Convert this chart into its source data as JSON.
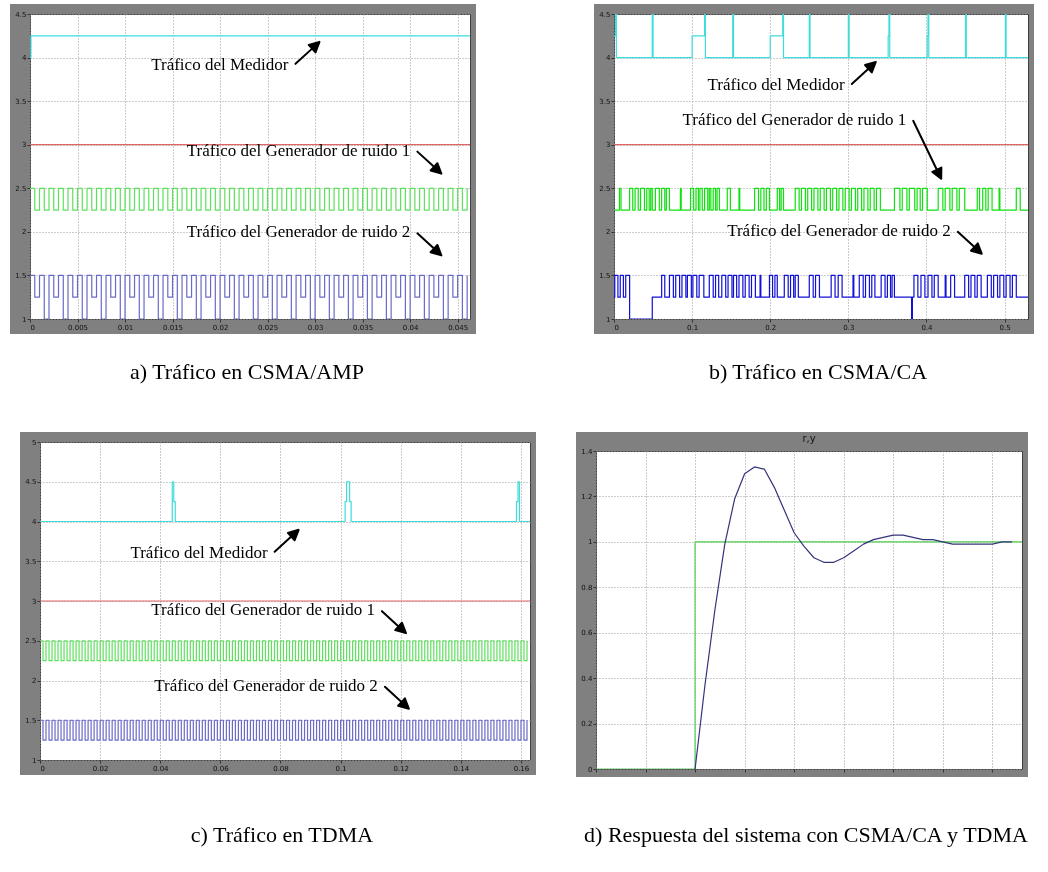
{
  "chart_data": [
    {
      "type": "step",
      "title": "a) Tráfico en CSMA/AMP",
      "xlim": [
        0,
        0.0463
      ],
      "xticks": [
        0,
        0.005,
        0.01,
        0.015,
        0.02,
        0.025,
        0.03,
        0.035,
        0.04,
        0.045
      ],
      "ylim": [
        1,
        4.5
      ],
      "yticks": [
        1,
        1.5,
        2,
        2.5,
        3,
        3.5,
        4,
        4.5
      ],
      "grid": true,
      "x": [
        0,
        0.0005,
        0.001,
        0.0015,
        0.002,
        0.0025,
        0.003,
        0.0035,
        0.004,
        0.0045,
        0.005,
        0.0055,
        0.006,
        0.0065,
        0.007,
        0.0075,
        0.008,
        0.0085,
        0.009,
        0.0095,
        0.01,
        0.0105,
        0.011,
        0.0115,
        0.012,
        0.0125,
        0.013,
        0.0135,
        0.014,
        0.0145,
        0.015,
        0.0155,
        0.016,
        0.0165,
        0.017,
        0.0175,
        0.018,
        0.0185,
        0.019,
        0.0195,
        0.02,
        0.0205,
        0.021,
        0.0215,
        0.022,
        0.0225,
        0.023,
        0.0235,
        0.024,
        0.0245,
        0.025,
        0.0255,
        0.026,
        0.0265,
        0.027,
        0.0275,
        0.028,
        0.0285,
        0.029,
        0.0295,
        0.03,
        0.0305,
        0.031,
        0.0315,
        0.032,
        0.0325,
        0.033,
        0.0335,
        0.034,
        0.0345,
        0.035,
        0.0355,
        0.036,
        0.0365,
        0.037,
        0.0375,
        0.038,
        0.0385,
        0.039,
        0.0395,
        0.04,
        0.0405,
        0.041,
        0.0415,
        0.042,
        0.0425,
        0.043,
        0.0435,
        0.044,
        0.0445,
        0.045,
        0.0455,
        0.046
      ],
      "series": [
        {
          "color": "#40dcdc",
          "x": [
            0,
            0.0001,
            0.0463
          ],
          "values": [
            4,
            4.25,
            4.25
          ]
        },
        {
          "color": "#e06666",
          "x": [
            0,
            0.0463
          ],
          "values": [
            3,
            3
          ]
        },
        {
          "color": "#5ee05e",
          "values": [
            2.5,
            2.25,
            2.5,
            2.25,
            2.5,
            2.25,
            2.5,
            2.25,
            2.5,
            2.25,
            2.5,
            2.25,
            2.5,
            2.25,
            2.5,
            2.25,
            2.5,
            2.25,
            2.5,
            2.25,
            2.5,
            2.25,
            2.5,
            2.25,
            2.5,
            2.25,
            2.5,
            2.25,
            2.5,
            2.25,
            2.5,
            2.25,
            2.5,
            2.25,
            2.5,
            2.25,
            2.5,
            2.25,
            2.5,
            2.25,
            2.5,
            2.25,
            2.5,
            2.25,
            2.5,
            2.25,
            2.5,
            2.25,
            2.5,
            2.25,
            2.5,
            2.25,
            2.5,
            2.25,
            2.5,
            2.25,
            2.5,
            2.25,
            2.5,
            2.25,
            2.5,
            2.25,
            2.5,
            2.25,
            2.5,
            2.25,
            2.5,
            2.25,
            2.5,
            2.25,
            2.5,
            2.25,
            2.5,
            2.25,
            2.5,
            2.25,
            2.5,
            2.25,
            2.5,
            2.25,
            2.5,
            2.25,
            2.5,
            2.25,
            2.5,
            2.25,
            2.5,
            2.25,
            2.5,
            2.25,
            2.5,
            2.25,
            2.5
          ]
        },
        {
          "color": "#6a6ac8",
          "values": [
            1.5,
            1.25,
            1.5,
            1,
            1.5,
            1.25,
            1.5,
            1,
            1.5,
            1.25,
            1.5,
            1,
            1.5,
            1.25,
            1.5,
            1,
            1.5,
            1.25,
            1.5,
            1,
            1.5,
            1.25,
            1.5,
            1,
            1.5,
            1.25,
            1.5,
            1,
            1.5,
            1.25,
            1.5,
            1,
            1.5,
            1.25,
            1.5,
            1,
            1.5,
            1.25,
            1.5,
            1,
            1.5,
            1.25,
            1.5,
            1,
            1.5,
            1.25,
            1.5,
            1,
            1.5,
            1.25,
            1.5,
            1,
            1.5,
            1.25,
            1.5,
            1,
            1.5,
            1.25,
            1.5,
            1,
            1.5,
            1.25,
            1.5,
            1,
            1.5,
            1.25,
            1.5,
            1,
            1.5,
            1.25,
            1.5,
            1,
            1.5,
            1.25,
            1.5,
            1,
            1.5,
            1.25,
            1.5,
            1,
            1.5,
            1.25,
            1.5,
            1,
            1.5,
            1.25,
            1.5,
            1,
            1.5,
            1.25,
            1.5,
            1,
            1.5
          ]
        }
      ],
      "annotations": [
        "Tráfico del Medidor",
        "Tráfico del Generador de ruido  1",
        "Tráfico del Generador de ruido  2"
      ]
    },
    {
      "type": "step",
      "title": "b) Tráfico en CSMA/CA",
      "xlim": [
        0,
        0.53
      ],
      "xticks": [
        0,
        0.1,
        0.2,
        0.3,
        0.4,
        0.5
      ],
      "ylim": [
        1,
        4.5
      ],
      "yticks": [
        1,
        1.5,
        2,
        2.5,
        3,
        3.5,
        4,
        4.5
      ],
      "grid": true,
      "series": [
        {
          "color": "#40dcdc",
          "x": [
            0,
            0.002,
            0.003,
            0.049,
            0.05,
            0.1,
            0.116,
            0.117,
            0.152,
            0.153,
            0.2,
            0.216,
            0.217,
            0.25,
            0.251,
            0.3,
            0.301,
            0.351,
            0.352,
            0.353,
            0.401,
            0.402,
            0.403,
            0.45,
            0.451,
            0.501,
            0.502,
            0.53
          ],
          "values": [
            4.25,
            4.5,
            4,
            4.5,
            4,
            4.25,
            4.5,
            4,
            4.5,
            4,
            4.25,
            4.5,
            4,
            4.5,
            4,
            4.5,
            4,
            4.25,
            4.5,
            4,
            4.25,
            4.5,
            4,
            4.5,
            4,
            4.5,
            4,
            4
          ]
        },
        {
          "color": "#e06666",
          "x": [
            0,
            0.53
          ],
          "values": [
            3,
            3
          ]
        },
        {
          "color": "#10e010",
          "x": [
            0,
            0.007,
            0.009,
            0.02,
            0.024,
            0.027,
            0.031,
            0.034,
            0.039,
            0.042,
            0.045,
            0.047,
            0.049,
            0.053,
            0.058,
            0.061,
            0.065,
            0.067,
            0.071,
            0.085,
            0.086,
            0.098,
            0.102,
            0.105,
            0.108,
            0.11,
            0.113,
            0.116,
            0.12,
            0.122,
            0.124,
            0.127,
            0.13,
            0.132,
            0.135,
            0.145,
            0.149,
            0.16,
            0.161,
            0.18,
            0.185,
            0.188,
            0.192,
            0.195,
            0.199,
            0.209,
            0.212,
            0.214,
            0.217,
            0.232,
            0.237,
            0.24,
            0.245,
            0.248,
            0.253,
            0.256,
            0.261,
            0.264,
            0.269,
            0.272,
            0.277,
            0.28,
            0.285,
            0.288,
            0.293,
            0.296,
            0.301,
            0.304,
            0.309,
            0.312,
            0.317,
            0.32,
            0.325,
            0.328,
            0.333,
            0.336,
            0.341,
            0.359,
            0.366,
            0.369,
            0.375,
            0.378,
            0.385,
            0.388,
            0.392,
            0.395,
            0.401,
            0.415,
            0.421,
            0.424,
            0.43,
            0.433,
            0.439,
            0.442,
            0.449,
            0.465,
            0.468,
            0.472,
            0.476,
            0.479,
            0.484,
            0.493,
            0.494,
            0.515,
            0.52,
            0.53
          ],
          "values": [
            2.25,
            2.5,
            2.25,
            2.5,
            2.25,
            2.5,
            2.25,
            2.5,
            2.25,
            2.5,
            2.25,
            2.5,
            2.25,
            2.5,
            2.25,
            2.5,
            2.25,
            2.5,
            2.25,
            2.5,
            2.25,
            2.5,
            2.25,
            2.5,
            2.25,
            2.5,
            2.25,
            2.5,
            2.25,
            2.5,
            2.25,
            2.5,
            2.25,
            2.5,
            2.25,
            2.5,
            2.25,
            2.5,
            2.25,
            2.5,
            2.25,
            2.5,
            2.25,
            2.5,
            2.25,
            2.5,
            2.25,
            2.5,
            2.25,
            2.5,
            2.25,
            2.5,
            2.25,
            2.5,
            2.25,
            2.5,
            2.25,
            2.5,
            2.25,
            2.5,
            2.25,
            2.5,
            2.25,
            2.5,
            2.25,
            2.5,
            2.25,
            2.5,
            2.25,
            2.5,
            2.25,
            2.5,
            2.25,
            2.5,
            2.25,
            2.5,
            2.25,
            2.5,
            2.25,
            2.5,
            2.25,
            2.5,
            2.25,
            2.5,
            2.25,
            2.5,
            2.25,
            2.5,
            2.25,
            2.5,
            2.25,
            2.5,
            2.25,
            2.5,
            2.25,
            2.5,
            2.25,
            2.5,
            2.25,
            2.5,
            2.25,
            2.5,
            2.25,
            2.5,
            2.25,
            2.25
          ]
        },
        {
          "color": "#1010d8",
          "x": [
            0,
            0.001,
            0.005,
            0.008,
            0.012,
            0.015,
            0.02,
            0.049,
            0.061,
            0.065,
            0.071,
            0.076,
            0.079,
            0.084,
            0.087,
            0.092,
            0.094,
            0.099,
            0.101,
            0.106,
            0.109,
            0.115,
            0.122,
            0.127,
            0.13,
            0.134,
            0.138,
            0.143,
            0.146,
            0.151,
            0.153,
            0.157,
            0.16,
            0.165,
            0.168,
            0.173,
            0.176,
            0.181,
            0.187,
            0.188,
            0.199,
            0.203,
            0.206,
            0.209,
            0.218,
            0.223,
            0.226,
            0.23,
            0.232,
            0.236,
            0.25,
            0.255,
            0.258,
            0.263,
            0.278,
            0.283,
            0.287,
            0.292,
            0.306,
            0.307,
            0.314,
            0.319,
            0.322,
            0.327,
            0.33,
            0.334,
            0.342,
            0.347,
            0.35,
            0.354,
            0.356,
            0.359,
            0.381,
            0.382,
            0.384,
            0.389,
            0.393,
            0.398,
            0.402,
            0.407,
            0.41,
            0.415,
            0.424,
            0.425,
            0.431,
            0.436,
            0.449,
            0.454,
            0.457,
            0.462,
            0.465,
            0.47,
            0.478,
            0.483,
            0.486,
            0.491,
            0.494,
            0.499,
            0.502,
            0.507,
            0.51,
            0.515,
            0.53
          ],
          "values": [
            1.25,
            1.5,
            1.25,
            1.5,
            1.25,
            1.5,
            1,
            1.25,
            1.5,
            1.25,
            1.5,
            1.25,
            1.5,
            1.25,
            1.5,
            1.25,
            1.5,
            1.25,
            1.5,
            1.25,
            1.5,
            1.25,
            1.5,
            1.25,
            1.5,
            1.25,
            1.5,
            1.25,
            1.5,
            1.25,
            1.5,
            1.25,
            1.5,
            1.25,
            1.5,
            1.25,
            1.5,
            1.25,
            1.5,
            1.25,
            1.5,
            1.25,
            1.5,
            1.25,
            1.5,
            1.25,
            1.5,
            1.25,
            1.5,
            1.25,
            1.5,
            1.25,
            1.5,
            1.25,
            1.5,
            1.25,
            1.5,
            1.25,
            1.5,
            1.25,
            1.5,
            1.25,
            1.5,
            1.25,
            1.5,
            1.25,
            1.5,
            1.25,
            1.5,
            1.25,
            1.5,
            1.25,
            1,
            1.25,
            1.5,
            1.25,
            1.5,
            1.25,
            1.5,
            1.25,
            1.5,
            1.25,
            1.5,
            1.25,
            1.5,
            1.25,
            1.5,
            1.25,
            1.5,
            1.25,
            1.5,
            1.25,
            1.5,
            1.25,
            1.5,
            1.25,
            1.5,
            1.25,
            1.5,
            1.25,
            1.5,
            1.25,
            1.25
          ]
        }
      ],
      "annotations": [
        "Tráfico del Medidor",
        "Tráfico del Generador de ruido  1",
        "Tráfico del Generador de ruido  2"
      ]
    },
    {
      "type": "step",
      "title": "c) Tráfico en TDMA",
      "xlim": [
        0,
        0.163
      ],
      "xticks": [
        0,
        0.02,
        0.04,
        0.06,
        0.08,
        0.1,
        0.12,
        0.14,
        0.16
      ],
      "ylim": [
        1,
        5
      ],
      "yticks": [
        1,
        1.5,
        2,
        2.5,
        3,
        3.5,
        4,
        4.5,
        5
      ],
      "grid": true,
      "x": [
        0,
        0.001,
        0.002,
        0.003,
        0.004,
        0.005,
        0.006,
        0.007,
        0.008,
        0.009,
        0.01,
        0.011,
        0.012,
        0.013,
        0.014,
        0.015,
        0.016,
        0.017,
        0.018,
        0.019,
        0.02,
        0.021,
        0.022,
        0.023,
        0.024,
        0.025,
        0.026,
        0.027,
        0.028,
        0.029,
        0.03,
        0.031,
        0.032,
        0.033,
        0.034,
        0.035,
        0.036,
        0.037,
        0.038,
        0.039,
        0.04,
        0.041,
        0.042,
        0.043,
        0.044,
        0.045,
        0.046,
        0.047,
        0.048,
        0.049,
        0.05,
        0.051,
        0.052,
        0.053,
        0.054,
        0.055,
        0.056,
        0.057,
        0.058,
        0.059,
        0.06,
        0.061,
        0.062,
        0.063,
        0.064,
        0.065,
        0.066,
        0.067,
        0.068,
        0.069,
        0.07,
        0.071,
        0.072,
        0.073,
        0.074,
        0.075,
        0.076,
        0.077,
        0.078,
        0.079,
        0.08,
        0.081,
        0.082,
        0.083,
        0.084,
        0.085,
        0.086,
        0.087,
        0.088,
        0.089,
        0.09,
        0.091,
        0.092,
        0.093,
        0.094,
        0.095,
        0.096,
        0.097,
        0.098,
        0.099,
        0.1,
        0.101,
        0.102,
        0.103,
        0.104,
        0.105,
        0.106,
        0.107,
        0.108,
        0.109,
        0.11,
        0.111,
        0.112,
        0.113,
        0.114,
        0.115,
        0.116,
        0.117,
        0.118,
        0.119,
        0.12,
        0.121,
        0.122,
        0.123,
        0.124,
        0.125,
        0.126,
        0.127,
        0.128,
        0.129,
        0.13,
        0.131,
        0.132,
        0.133,
        0.134,
        0.135,
        0.136,
        0.137,
        0.138,
        0.139,
        0.14,
        0.141,
        0.142,
        0.143,
        0.144,
        0.145,
        0.146,
        0.147,
        0.148,
        0.149,
        0.15,
        0.151,
        0.152,
        0.153,
        0.154,
        0.155,
        0.156,
        0.157,
        0.158,
        0.159,
        0.16,
        0.161,
        0.162
      ],
      "series": [
        {
          "color": "#40dcdc",
          "x": [
            0,
            0.044,
            0.0445,
            0.045,
            0.1015,
            0.102,
            0.103,
            0.1035,
            0.1585,
            0.159,
            0.1595,
            0.163
          ],
          "values": [
            4,
            4.5,
            4.25,
            4,
            4.25,
            4.5,
            4.25,
            4,
            4.25,
            4.5,
            4,
            4
          ]
        },
        {
          "color": "#e06666",
          "x": [
            0,
            0.163
          ],
          "values": [
            3,
            3
          ]
        },
        {
          "color": "#5ee05e",
          "values": [
            2.5,
            2.25,
            2.5,
            2.25,
            2.5,
            2.25,
            2.5,
            2.25,
            2.5,
            2.25,
            2.5,
            2.25,
            2.5,
            2.25,
            2.5,
            2.25,
            2.5,
            2.25,
            2.5,
            2.25,
            2.5,
            2.25,
            2.5,
            2.25,
            2.5,
            2.25,
            2.5,
            2.25,
            2.5,
            2.25,
            2.5,
            2.25,
            2.5,
            2.25,
            2.5,
            2.25,
            2.5,
            2.25,
            2.5,
            2.25,
            2.5,
            2.25,
            2.5,
            2.25,
            2.5,
            2.25,
            2.5,
            2.25,
            2.5,
            2.25,
            2.5,
            2.25,
            2.5,
            2.25,
            2.5,
            2.25,
            2.5,
            2.25,
            2.5,
            2.25,
            2.5,
            2.25,
            2.5,
            2.25,
            2.5,
            2.25,
            2.5,
            2.25,
            2.5,
            2.25,
            2.5,
            2.25,
            2.5,
            2.25,
            2.5,
            2.25,
            2.5,
            2.25,
            2.5,
            2.25,
            2.5,
            2.25,
            2.5,
            2.25,
            2.5,
            2.25,
            2.5,
            2.25,
            2.5,
            2.25,
            2.5,
            2.25,
            2.5,
            2.25,
            2.5,
            2.25,
            2.5,
            2.25,
            2.5,
            2.25,
            2.5,
            2.25,
            2.5,
            2.25,
            2.5,
            2.25,
            2.5,
            2.25,
            2.5,
            2.25,
            2.5,
            2.25,
            2.5,
            2.25,
            2.5,
            2.25,
            2.5,
            2.25,
            2.5,
            2.25,
            2.5,
            2.25,
            2.5,
            2.25,
            2.5,
            2.25,
            2.5,
            2.25,
            2.5,
            2.25,
            2.5,
            2.25,
            2.5,
            2.25,
            2.5,
            2.25,
            2.5,
            2.25,
            2.5,
            2.25,
            2.5,
            2.25,
            2.5,
            2.25,
            2.5,
            2.25,
            2.5,
            2.25,
            2.5,
            2.25,
            2.5,
            2.25,
            2.5,
            2.25,
            2.5,
            2.25,
            2.5,
            2.25,
            2.5,
            2.25,
            2.5,
            2.25,
            2.5
          ]
        },
        {
          "color": "#6a6ac8",
          "values": [
            1.5,
            1.25,
            1.5,
            1.25,
            1.5,
            1.25,
            1.5,
            1.25,
            1.5,
            1.25,
            1.5,
            1.25,
            1.5,
            1.25,
            1.5,
            1.25,
            1.5,
            1.25,
            1.5,
            1.25,
            1.5,
            1.25,
            1.5,
            1.25,
            1.5,
            1.25,
            1.5,
            1.25,
            1.5,
            1.25,
            1.5,
            1.25,
            1.5,
            1.25,
            1.5,
            1.25,
            1.5,
            1.25,
            1.5,
            1.25,
            1.5,
            1.25,
            1.5,
            1.25,
            1.5,
            1.25,
            1.5,
            1.25,
            1.5,
            1.25,
            1.5,
            1.25,
            1.5,
            1.25,
            1.5,
            1.25,
            1.5,
            1.25,
            1.5,
            1.25,
            1.5,
            1.25,
            1.5,
            1.25,
            1.5,
            1.25,
            1.5,
            1.25,
            1.5,
            1.25,
            1.5,
            1.25,
            1.5,
            1.25,
            1.5,
            1.25,
            1.5,
            1.25,
            1.5,
            1.25,
            1.5,
            1.25,
            1.5,
            1.25,
            1.5,
            1.25,
            1.5,
            1.25,
            1.5,
            1.25,
            1.5,
            1.25,
            1.5,
            1.25,
            1.5,
            1.25,
            1.5,
            1.25,
            1.5,
            1.25,
            1.5,
            1.25,
            1.5,
            1.25,
            1.5,
            1.25,
            1.5,
            1.25,
            1.5,
            1.25,
            1.5,
            1.25,
            1.5,
            1.25,
            1.5,
            1.25,
            1.5,
            1.25,
            1.5,
            1.25,
            1.5,
            1.25,
            1.5,
            1.25,
            1.5,
            1.25,
            1.5,
            1.25,
            1.5,
            1.25,
            1.5,
            1.25,
            1.5,
            1.25,
            1.5,
            1.25,
            1.5,
            1.25,
            1.5,
            1.25,
            1.5,
            1.25,
            1.5,
            1.25,
            1.5,
            1.25,
            1.5,
            1.25,
            1.5,
            1.25,
            1.5,
            1.25,
            1.5,
            1.25,
            1.5,
            1.25,
            1.5,
            1.25,
            1.5,
            1.25,
            1.5,
            1.25,
            1.5
          ]
        }
      ],
      "annotations": [
        "Tráfico del Medidor",
        "Tráfico del Generador de ruido  1",
        "Tráfico del Generador de ruido  2"
      ]
    },
    {
      "type": "line",
      "title": "d) Respuesta del sistema con CSMA/CA y TDMA",
      "subtitle": "r,y",
      "ylim": [
        0,
        1.4
      ],
      "yticks": [
        0,
        0.2,
        0.4,
        0.6,
        0.8,
        1,
        1.2,
        1.4
      ],
      "grid": true,
      "tick_labels": "y",
      "categories": [
        null,
        null,
        null,
        null,
        null,
        null,
        null,
        null,
        null,
        null,
        null,
        null,
        null,
        null,
        null,
        null,
        null,
        null,
        null,
        null,
        null,
        null,
        null,
        null,
        null,
        null,
        null,
        null,
        null,
        null,
        null,
        null,
        null,
        null,
        null,
        null,
        null,
        null,
        null,
        null,
        null,
        null,
        null,
        null
      ],
      "series": [
        {
          "type": "step",
          "color": "#50d050",
          "values": [
            0,
            0,
            0,
            0,
            0,
            0,
            0,
            0,
            0,
            0,
            1,
            1,
            1,
            1,
            1,
            1,
            1,
            1,
            1,
            1,
            1,
            1,
            1,
            1,
            1,
            1,
            1,
            1,
            1,
            1,
            1,
            1,
            1,
            1,
            1,
            1,
            1,
            1,
            1,
            1,
            1,
            1,
            1,
            1
          ]
        },
        {
          "type": "line",
          "color": "#34347c",
          "values": [
            null,
            null,
            null,
            null,
            null,
            null,
            null,
            null,
            null,
            null,
            0,
            0.37,
            0.7,
            0.99,
            1.19,
            1.3,
            1.33,
            1.32,
            1.24,
            1.14,
            1.04,
            0.98,
            0.93,
            0.91,
            0.91,
            0.93,
            0.96,
            0.99,
            1.01,
            1.02,
            1.03,
            1.03,
            1.02,
            1.01,
            1.01,
            1,
            0.99,
            0.99,
            0.99,
            0.99,
            0.99,
            1,
            1,
            null
          ]
        }
      ]
    }
  ]
}
